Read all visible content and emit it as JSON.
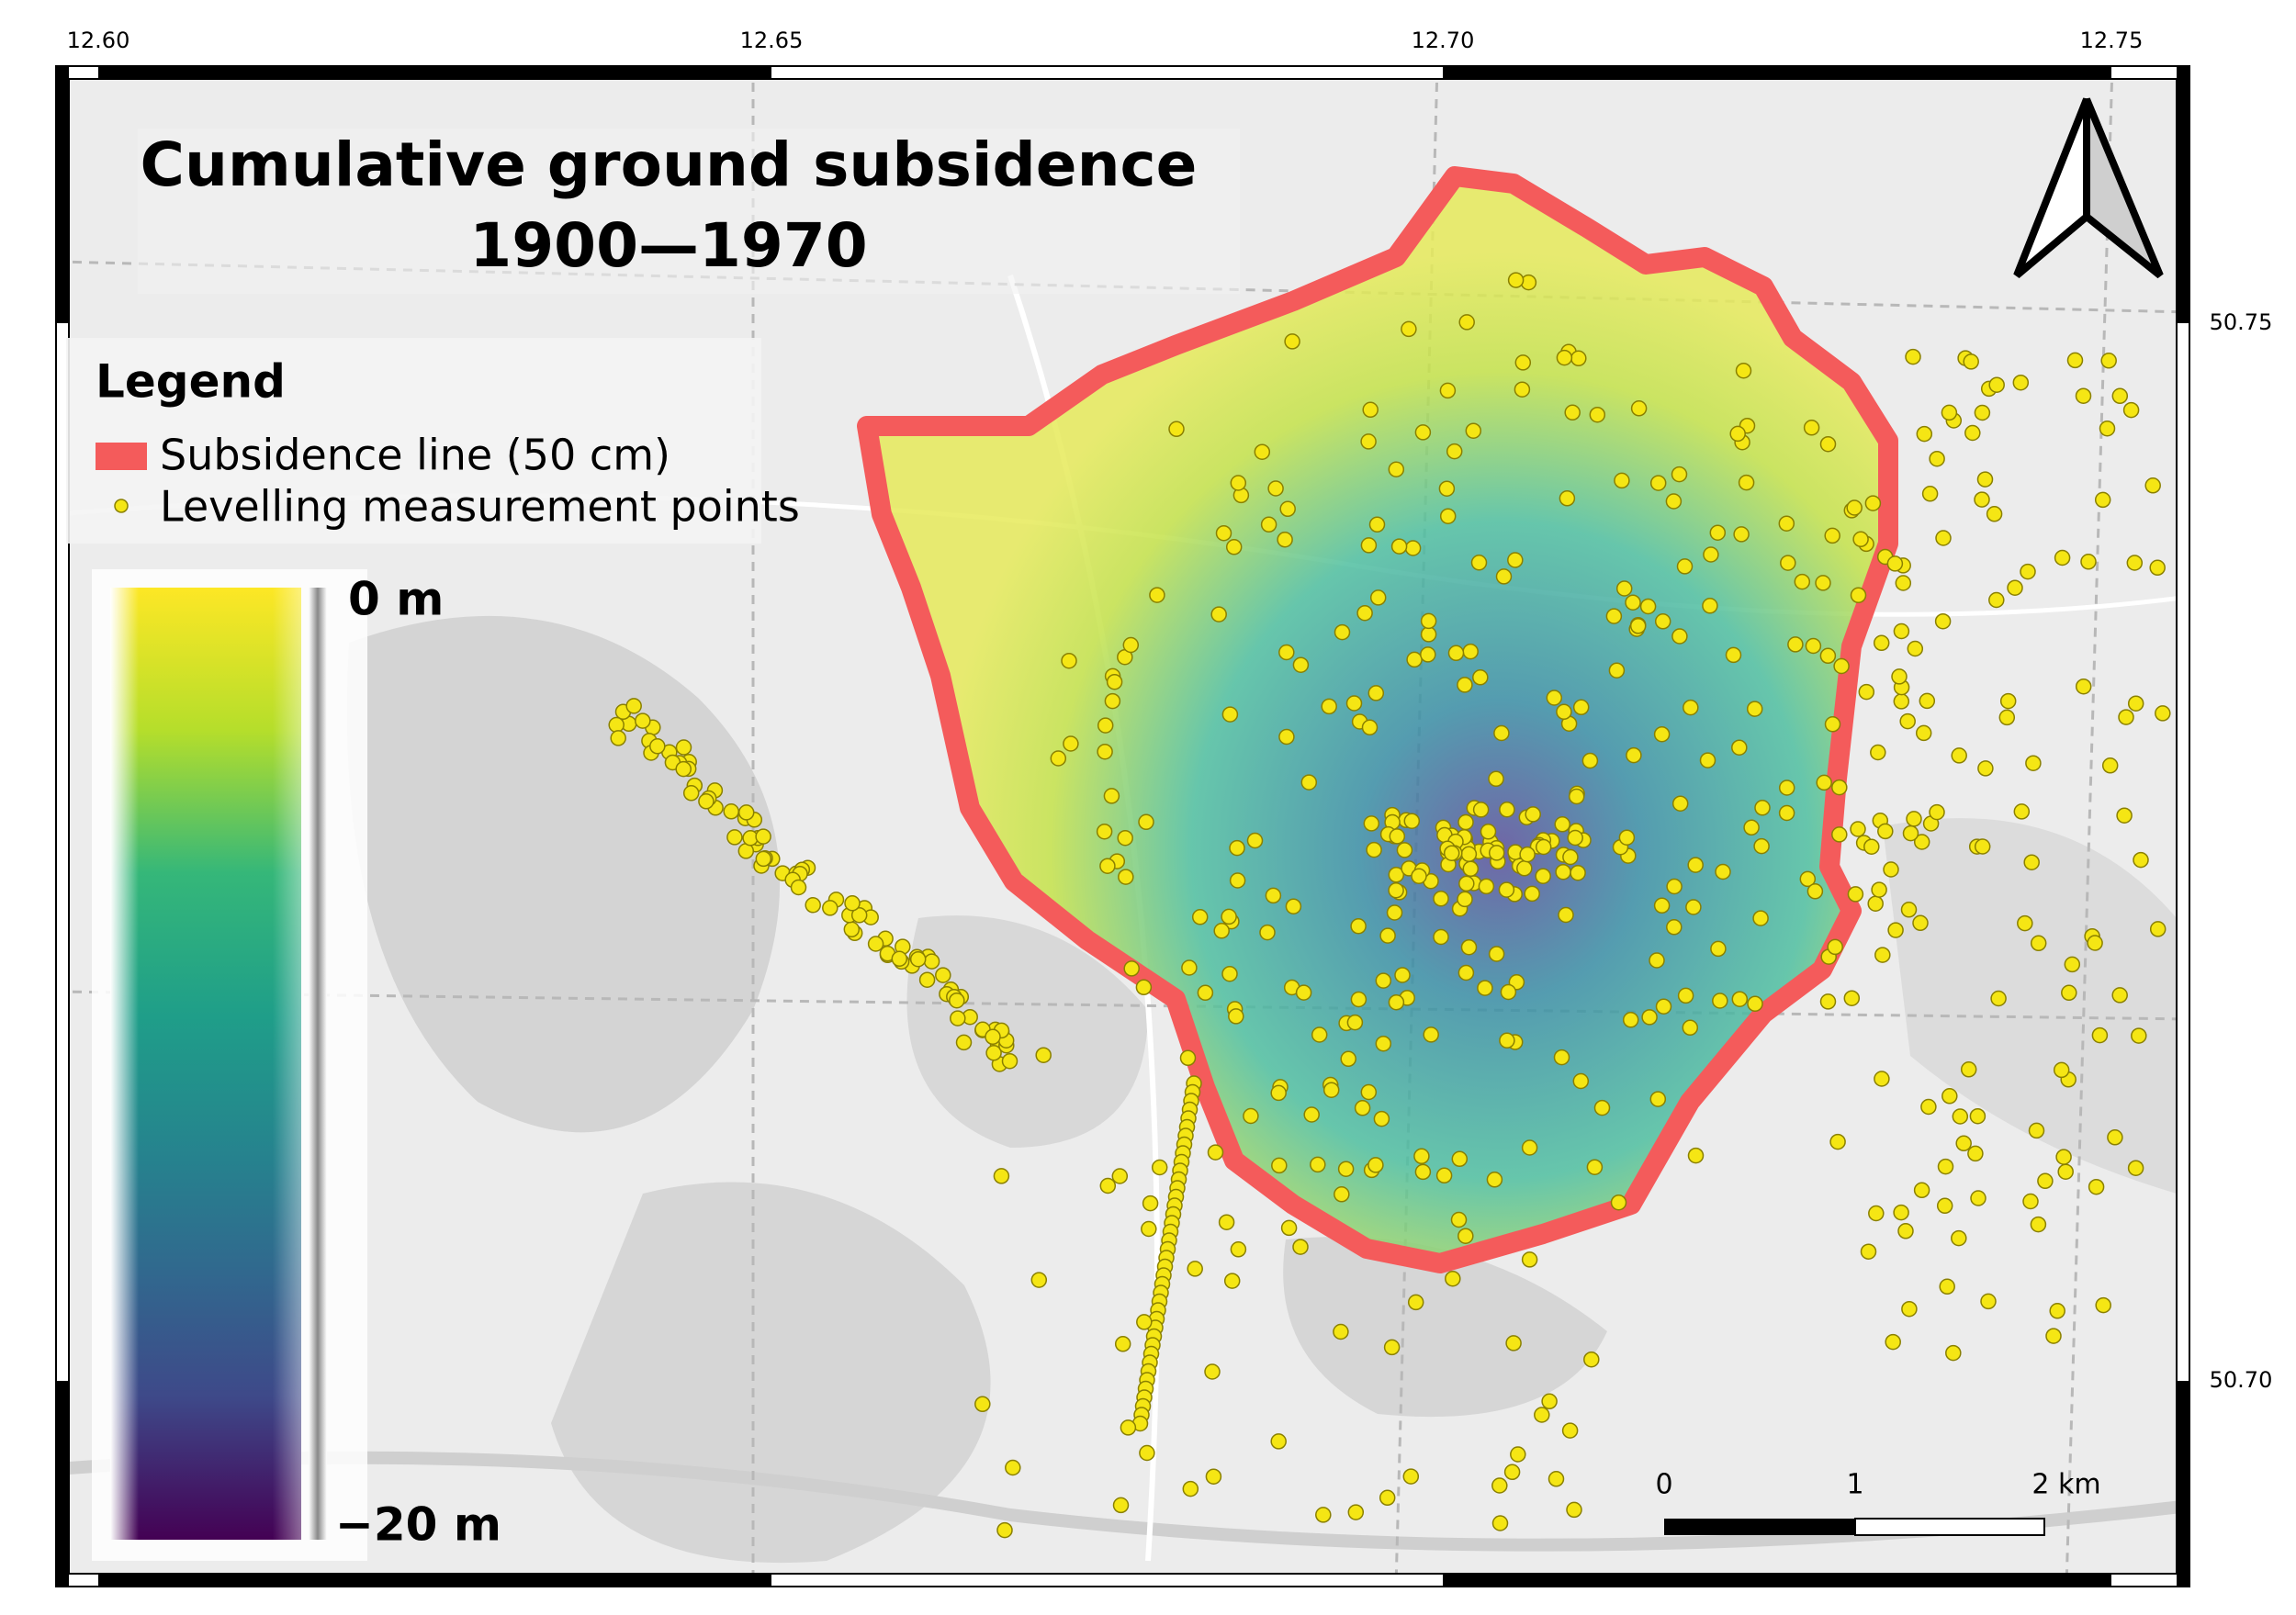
{
  "title": {
    "line1": "Cumulative ground subsidence",
    "line2": "1900—1970"
  },
  "legend": {
    "title": "Legend",
    "items": [
      "Subsidence line (50 cm)",
      "Levelling measurement points"
    ]
  },
  "colorbar": {
    "top_label": "0 m",
    "bottom_label": "−20 m"
  },
  "lon_labels": [
    "12.60",
    "12.65",
    "12.70",
    "12.75"
  ],
  "lat_labels": [
    "50.75",
    "50.70"
  ],
  "scale_bar": {
    "labels": [
      "0",
      "1",
      "2 km"
    ]
  }
}
